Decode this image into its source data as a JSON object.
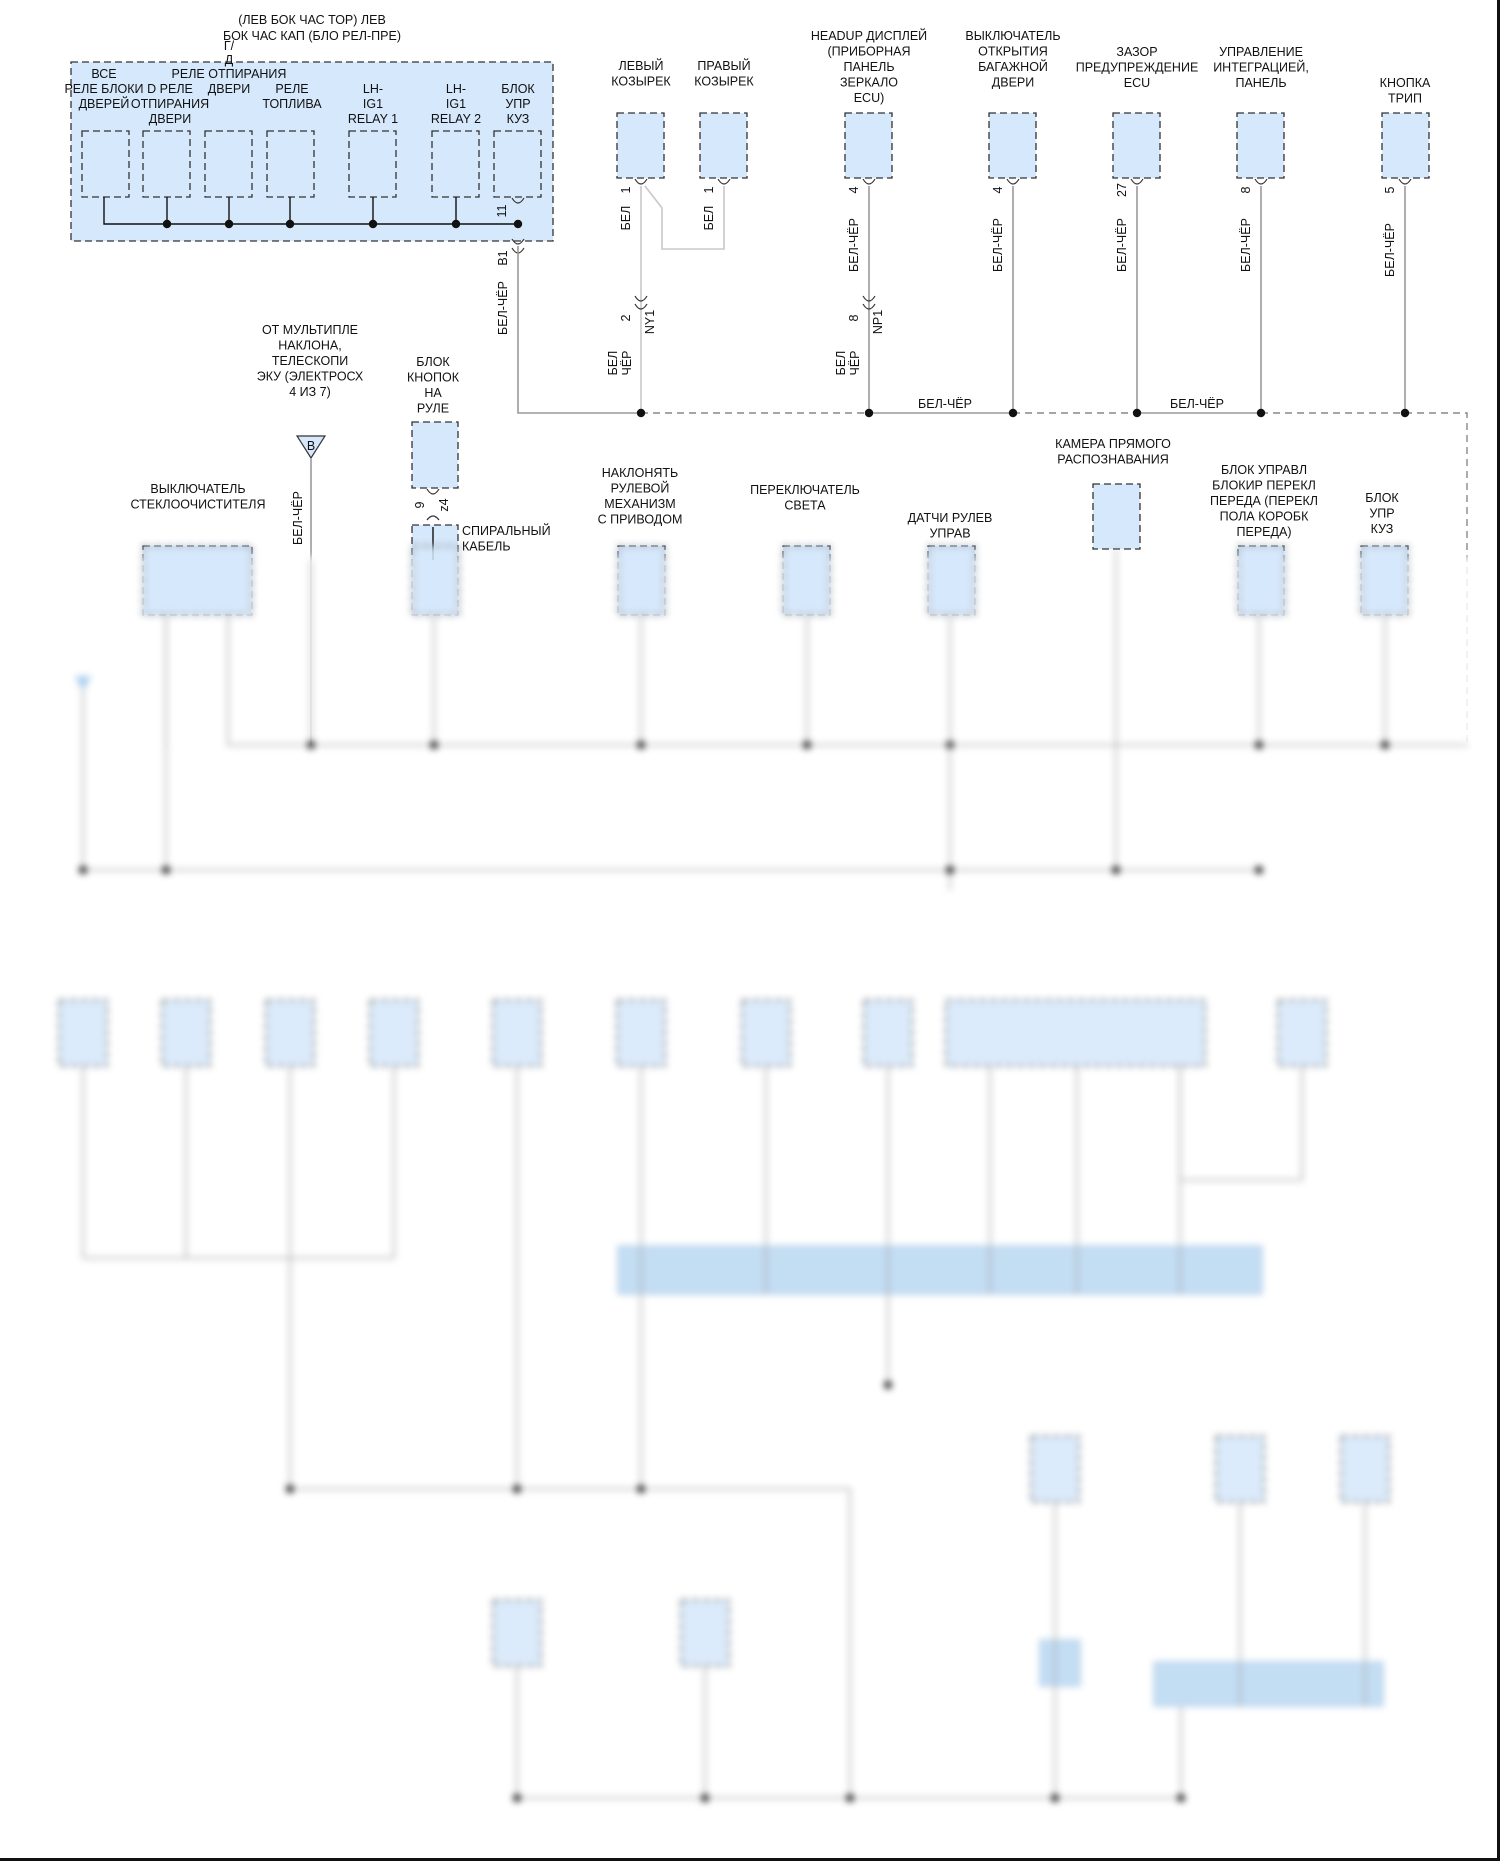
{
  "header": {
    "title_lines": [
      "(ЛЕВ БОК ЧАС ТОР) ЛЕВ",
      "БОК ЧАС КАП (БЛО РЕЛ-ПРЕ)"
    ]
  },
  "relay_box": {
    "all_door_lock_relay": [
      "ВСЕ",
      "РЕЛЕ БЛОКИ",
      "ДВЕРЕЙ"
    ],
    "door_unlock_relay": [
      "D РЕЛЕ",
      "ОТПИРАНИЯ",
      "ДВЕРИ"
    ],
    "driver_door_unlock_relay": [
      "Г/",
      "Д",
      "РЕЛЕ ОТПИРАНИЯ",
      "ДВЕРИ"
    ],
    "fuel_relay": [
      "РЕЛЕ",
      "ТОПЛИВА"
    ],
    "lh_ig1_relay1": [
      "LH-",
      "IG1",
      "RELAY 1"
    ],
    "lh_ig1_relay2": [
      "LH-",
      "IG1",
      "RELAY 2"
    ],
    "body_ecu": [
      "БЛОК",
      "УПР",
      "КУЗ"
    ],
    "pin": "11",
    "connector": "B1"
  },
  "top_components": {
    "left_visor": [
      "ЛЕВЫЙ",
      "КОЗЫРЕК"
    ],
    "right_visor": [
      "ПРАВЫЙ",
      "КОЗЫРЕК"
    ],
    "headup_display": [
      "HEADUP ДИСПЛЕЙ",
      "(ПРИБОРНАЯ",
      "ПАНЕЛЬ",
      "ЗЕРКАЛО",
      "ECU)"
    ],
    "tailgate_switch": [
      "ВЫКЛЮЧАТЕЛЬ",
      "ОТКРЫТИЯ",
      "БАГАЖНОЙ",
      "ДВЕРИ"
    ],
    "clearance_warning_ecu": [
      "ЗАЗОР",
      "ПРЕДУПРЕЖДЕНИЕ",
      "ECU"
    ],
    "integration_panel": [
      "УПРАВЛЕНИЕ",
      "ИНТЕГРАЦИЕЙ,",
      "ПАНЕЛЬ"
    ],
    "trip_button": [
      "КНОПКА",
      "ТРИП"
    ]
  },
  "top_pins": {
    "left_visor": "1",
    "right_visor": "1",
    "headup_display": "4",
    "tailgate_switch": "4",
    "clearance_warning_ecu": "27",
    "integration_panel": "8",
    "trip_button": "5"
  },
  "connectors": {
    "ny1": {
      "pin": "2",
      "name": "NY1"
    },
    "np1": {
      "pin": "8",
      "name": "NP1"
    }
  },
  "wire_colors": {
    "white": "БЕЛ",
    "white_black": "БЕЛ-ЧЁР",
    "white_split": [
      "БЕЛ",
      "ЧЁР"
    ]
  },
  "middle_components": {
    "multiplex_tilt_ecu": [
      "ОТ МУЛЬТИПЛЕ",
      "НАКЛОНА,",
      "ТЕЛЕСКОПИ",
      "ЭКУ (ЭЛЕКТРОСХ",
      "4 ИЗ 7)"
    ],
    "offpage_ref": "B",
    "steering_pad": [
      "БЛОК",
      "КНОПОК",
      "НА",
      "РУЛЕ"
    ],
    "steering_pad_pins": {
      "pin": "9",
      "connector": "z4"
    },
    "spiral_cable": [
      "СПИРАЛЬНЫЙ",
      "КАБЕЛЬ"
    ],
    "wiper_switch": [
      "ВЫКЛЮЧАТЕЛЬ",
      "СТЕКЛООЧИСТИТЕЛЯ"
    ],
    "power_tilt": [
      "НАКЛОНЯТЬ",
      "РУЛЕВОЙ",
      "МЕХАНИЗМ",
      "С ПРИВОДОМ"
    ],
    "light_switch": [
      "ПЕРЕКЛЮЧАТЕЛЬ",
      "СВЕТА"
    ],
    "steering_sensor": [
      "ДАТЧИ РУЛЕВ",
      "УПРАВ"
    ],
    "front_camera": [
      "КАМЕРА ПРЯМОГО",
      "РАСПОЗНАВАНИЯ"
    ],
    "shift_lock_ecu": [
      "БЛОК УПРАВЛ",
      "БЛОКИР ПЕРЕКЛ",
      "ПЕРЕДА (ПЕРЕКЛ",
      "ПОЛА КОРОБК",
      "ПЕРЕДА)"
    ],
    "body_ecu_2": [
      "БЛОК",
      "УПР",
      "КУЗ"
    ]
  },
  "colors": {
    "component_fill": "#d6e8fb",
    "wire": "#9a9a9a",
    "outline": "#333333"
  }
}
